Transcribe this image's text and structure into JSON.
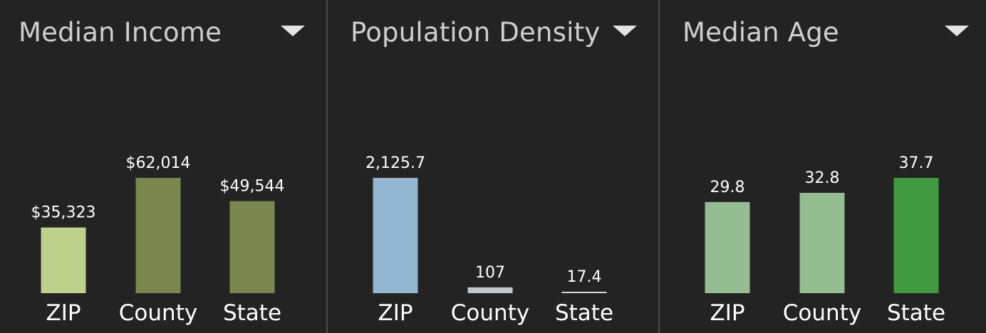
{
  "chart_data": [
    {
      "type": "bar",
      "title": "Median Income",
      "categories": [
        "ZIP",
        "County",
        "State"
      ],
      "values": [
        35323,
        62014,
        49544
      ],
      "value_labels": [
        "$35,323",
        "$62,014",
        "$49,544"
      ],
      "colors": [
        "#bdd18d",
        "#7a8850",
        "#7a8850"
      ]
    },
    {
      "type": "bar",
      "title": "Population Density",
      "categories": [
        "ZIP",
        "County",
        "State"
      ],
      "values": [
        2125.7,
        107,
        17.4
      ],
      "value_labels": [
        "2,125.7",
        "107",
        "17.4"
      ],
      "colors": [
        "#92b5d0",
        "#c4c6c9",
        "#d8d8d8"
      ]
    },
    {
      "type": "bar",
      "title": "Median Age",
      "categories": [
        "ZIP",
        "County",
        "State"
      ],
      "values": [
        29.8,
        32.8,
        37.7
      ],
      "value_labels": [
        "29.8",
        "32.8",
        "37.7"
      ],
      "colors": [
        "#94be92",
        "#94be92",
        "#41993f"
      ]
    }
  ]
}
